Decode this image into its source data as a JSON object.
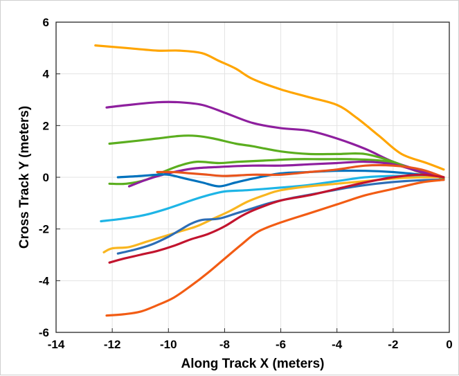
{
  "chart_data": {
    "type": "line",
    "title": "",
    "xlabel": "Along Track X (meters)",
    "ylabel": "Cross Track Y (meters)",
    "xlim": [
      -14,
      0
    ],
    "ylim": [
      -6,
      6
    ],
    "xticks": [
      -14,
      -12,
      -10,
      -8,
      -6,
      -4,
      -2,
      0
    ],
    "yticks": [
      -6,
      -4,
      -2,
      0,
      2,
      4,
      6
    ],
    "xtick_labels": [
      "-14",
      "-12",
      "-10",
      "-8",
      "-6",
      "-4",
      "-2",
      "0"
    ],
    "ytick_labels": [
      "-6",
      "-4",
      "-2",
      "0",
      "2",
      "4",
      "6"
    ],
    "grid": true,
    "legend": "none",
    "series": [
      {
        "color": "#FFA500",
        "points": [
          [
            -12.6,
            5.1
          ],
          [
            -11.5,
            5.0
          ],
          [
            -10.4,
            4.9
          ],
          [
            -9.6,
            4.9
          ],
          [
            -8.8,
            4.8
          ],
          [
            -8.2,
            4.5
          ],
          [
            -7.6,
            4.2
          ],
          [
            -7.0,
            3.8
          ],
          [
            -6.0,
            3.4
          ],
          [
            -5.0,
            3.1
          ],
          [
            -4.0,
            2.8
          ],
          [
            -3.3,
            2.3
          ],
          [
            -2.5,
            1.6
          ],
          [
            -1.7,
            0.9
          ],
          [
            -0.8,
            0.55
          ],
          [
            -0.2,
            0.3
          ]
        ]
      },
      {
        "color": "#8E1F9E",
        "points": [
          [
            -12.2,
            2.7
          ],
          [
            -11.4,
            2.8
          ],
          [
            -10.4,
            2.9
          ],
          [
            -9.6,
            2.9
          ],
          [
            -8.8,
            2.8
          ],
          [
            -8.0,
            2.5
          ],
          [
            -7.0,
            2.1
          ],
          [
            -6.0,
            1.9
          ],
          [
            -5.0,
            1.8
          ],
          [
            -4.0,
            1.5
          ],
          [
            -3.0,
            1.1
          ],
          [
            -2.0,
            0.6
          ],
          [
            -1.0,
            0.25
          ],
          [
            -0.2,
            0.0
          ]
        ]
      },
      {
        "color": "#5BAE1F",
        "points": [
          [
            -12.1,
            1.3
          ],
          [
            -11.2,
            1.4
          ],
          [
            -10.4,
            1.5
          ],
          [
            -9.6,
            1.6
          ],
          [
            -9.0,
            1.6
          ],
          [
            -8.4,
            1.5
          ],
          [
            -7.6,
            1.3
          ],
          [
            -7.0,
            1.2
          ],
          [
            -6.0,
            1.0
          ],
          [
            -5.0,
            0.9
          ],
          [
            -4.0,
            0.9
          ],
          [
            -3.0,
            0.9
          ],
          [
            -2.0,
            0.6
          ],
          [
            -1.2,
            0.25
          ],
          [
            -0.2,
            -0.05
          ]
        ]
      },
      {
        "color": "#5BAE1F",
        "points": [
          [
            -12.1,
            -0.25
          ],
          [
            -11.5,
            -0.25
          ],
          [
            -10.8,
            -0.1
          ],
          [
            -10.2,
            0.2
          ],
          [
            -9.6,
            0.45
          ],
          [
            -9.0,
            0.6
          ],
          [
            -8.2,
            0.55
          ],
          [
            -7.5,
            0.6
          ],
          [
            -6.5,
            0.65
          ],
          [
            -5.5,
            0.7
          ],
          [
            -4.5,
            0.7
          ],
          [
            -3.5,
            0.7
          ],
          [
            -2.5,
            0.65
          ],
          [
            -1.8,
            0.5
          ],
          [
            -1.0,
            0.2
          ],
          [
            -0.2,
            -0.05
          ]
        ]
      },
      {
        "color": "#8E1F9E",
        "points": [
          [
            -11.4,
            -0.35
          ],
          [
            -10.8,
            -0.1
          ],
          [
            -10.2,
            0.1
          ],
          [
            -9.6,
            0.25
          ],
          [
            -9.0,
            0.35
          ],
          [
            -8.2,
            0.4
          ],
          [
            -7.0,
            0.45
          ],
          [
            -6.0,
            0.45
          ],
          [
            -5.0,
            0.5
          ],
          [
            -4.0,
            0.55
          ],
          [
            -3.0,
            0.6
          ],
          [
            -2.0,
            0.5
          ],
          [
            -1.0,
            0.2
          ],
          [
            -0.2,
            0.0
          ]
        ]
      },
      {
        "color": "#0072BD",
        "points": [
          [
            -11.8,
            0.0
          ],
          [
            -11.0,
            0.05
          ],
          [
            -10.4,
            0.1
          ],
          [
            -10.0,
            0.1
          ],
          [
            -9.4,
            -0.05
          ],
          [
            -8.8,
            -0.2
          ],
          [
            -8.2,
            -0.35
          ],
          [
            -7.6,
            -0.2
          ],
          [
            -7.0,
            -0.05
          ],
          [
            -6.0,
            0.15
          ],
          [
            -5.0,
            0.2
          ],
          [
            -4.0,
            0.25
          ],
          [
            -3.0,
            0.25
          ],
          [
            -2.0,
            0.2
          ],
          [
            -1.0,
            0.1
          ],
          [
            -0.2,
            0.0
          ]
        ]
      },
      {
        "color": "#E8541C",
        "points": [
          [
            -10.4,
            0.2
          ],
          [
            -9.8,
            0.2
          ],
          [
            -9.2,
            0.15
          ],
          [
            -8.6,
            0.1
          ],
          [
            -8.0,
            0.05
          ],
          [
            -7.0,
            0.1
          ],
          [
            -6.0,
            0.1
          ],
          [
            -5.0,
            0.2
          ],
          [
            -4.0,
            0.3
          ],
          [
            -3.0,
            0.45
          ],
          [
            -2.0,
            0.45
          ],
          [
            -1.0,
            0.3
          ],
          [
            -0.2,
            0.0
          ]
        ]
      },
      {
        "color": "#1EB5E6",
        "points": [
          [
            -12.4,
            -1.7
          ],
          [
            -11.6,
            -1.6
          ],
          [
            -10.8,
            -1.45
          ],
          [
            -10.0,
            -1.2
          ],
          [
            -9.2,
            -0.9
          ],
          [
            -8.6,
            -0.7
          ],
          [
            -8.0,
            -0.55
          ],
          [
            -7.2,
            -0.5
          ],
          [
            -6.0,
            -0.4
          ],
          [
            -5.0,
            -0.3
          ],
          [
            -4.0,
            -0.15
          ],
          [
            -3.0,
            0.0
          ],
          [
            -2.0,
            0.05
          ],
          [
            -1.0,
            0.05
          ],
          [
            -0.2,
            0.0
          ]
        ]
      },
      {
        "color": "#F9B620",
        "points": [
          [
            -12.3,
            -2.9
          ],
          [
            -12.0,
            -2.75
          ],
          [
            -11.4,
            -2.7
          ],
          [
            -10.8,
            -2.5
          ],
          [
            -10.2,
            -2.3
          ],
          [
            -9.6,
            -2.1
          ],
          [
            -9.0,
            -1.9
          ],
          [
            -8.4,
            -1.6
          ],
          [
            -7.8,
            -1.3
          ],
          [
            -7.2,
            -0.95
          ],
          [
            -6.6,
            -0.7
          ],
          [
            -6.0,
            -0.5
          ],
          [
            -5.0,
            -0.35
          ],
          [
            -4.0,
            -0.25
          ],
          [
            -3.0,
            -0.15
          ],
          [
            -2.0,
            -0.05
          ],
          [
            -1.0,
            0.0
          ],
          [
            -0.2,
            0.0
          ]
        ]
      },
      {
        "color": "#2D6DB5",
        "points": [
          [
            -11.8,
            -2.95
          ],
          [
            -11.2,
            -2.8
          ],
          [
            -10.6,
            -2.6
          ],
          [
            -10.0,
            -2.3
          ],
          [
            -9.6,
            -2.05
          ],
          [
            -9.2,
            -1.8
          ],
          [
            -8.8,
            -1.65
          ],
          [
            -8.2,
            -1.6
          ],
          [
            -7.6,
            -1.4
          ],
          [
            -7.0,
            -1.2
          ],
          [
            -6.4,
            -1.0
          ],
          [
            -5.6,
            -0.8
          ],
          [
            -4.6,
            -0.6
          ],
          [
            -3.6,
            -0.4
          ],
          [
            -2.6,
            -0.25
          ],
          [
            -1.6,
            -0.15
          ],
          [
            -0.6,
            -0.1
          ],
          [
            -0.2,
            -0.1
          ]
        ]
      },
      {
        "color": "#C2142E",
        "points": [
          [
            -12.1,
            -3.3
          ],
          [
            -11.6,
            -3.15
          ],
          [
            -11.0,
            -3.0
          ],
          [
            -10.4,
            -2.85
          ],
          [
            -9.8,
            -2.65
          ],
          [
            -9.2,
            -2.4
          ],
          [
            -8.6,
            -2.2
          ],
          [
            -8.0,
            -1.9
          ],
          [
            -7.4,
            -1.5
          ],
          [
            -6.8,
            -1.2
          ],
          [
            -6.0,
            -0.9
          ],
          [
            -5.0,
            -0.7
          ],
          [
            -4.0,
            -0.45
          ],
          [
            -3.0,
            -0.2
          ],
          [
            -2.0,
            0.0
          ],
          [
            -1.0,
            0.1
          ],
          [
            -0.2,
            0.0
          ]
        ]
      },
      {
        "color": "#F25C14",
        "points": [
          [
            -12.2,
            -5.35
          ],
          [
            -11.6,
            -5.3
          ],
          [
            -11.0,
            -5.2
          ],
          [
            -10.4,
            -4.95
          ],
          [
            -9.8,
            -4.65
          ],
          [
            -9.2,
            -4.2
          ],
          [
            -8.6,
            -3.7
          ],
          [
            -8.0,
            -3.15
          ],
          [
            -7.4,
            -2.6
          ],
          [
            -6.8,
            -2.1
          ],
          [
            -6.0,
            -1.75
          ],
          [
            -5.0,
            -1.4
          ],
          [
            -4.0,
            -1.05
          ],
          [
            -3.0,
            -0.7
          ],
          [
            -2.0,
            -0.45
          ],
          [
            -1.0,
            -0.2
          ],
          [
            -0.2,
            -0.1
          ]
        ]
      }
    ]
  }
}
